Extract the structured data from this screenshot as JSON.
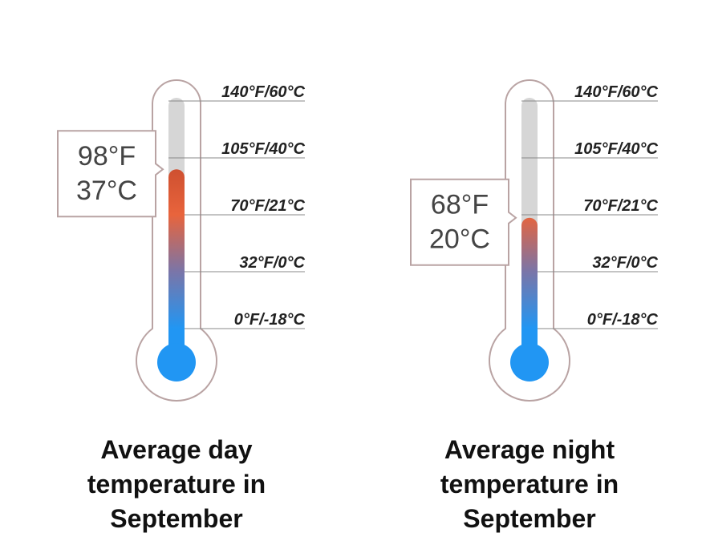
{
  "chart_data": [
    {
      "type": "thermometer",
      "title": "Average day temperature in September",
      "values": [
        98
      ],
      "value_labels": [
        "98°F"
      ],
      "celsius_labels": [
        "37°C"
      ],
      "ylim": [
        0,
        140
      ],
      "yticks": [
        {
          "value": 140,
          "label": "140°F/60°C"
        },
        {
          "value": 105,
          "label": "105°F/40°C"
        },
        {
          "value": 70,
          "label": "70°F/21°C"
        },
        {
          "value": 32,
          "label": "32°F/0°C"
        },
        {
          "value": 0,
          "label": "0°F/-18°C"
        }
      ]
    },
    {
      "type": "thermometer",
      "title": "Average night temperature in September",
      "values": [
        68
      ],
      "value_labels": [
        "68°F"
      ],
      "celsius_labels": [
        "20°C"
      ],
      "ylim": [
        0,
        140
      ],
      "yticks": [
        {
          "value": 140,
          "label": "140°F/60°C"
        },
        {
          "value": 105,
          "label": "105°F/40°C"
        },
        {
          "value": 70,
          "label": "70°F/21°C"
        },
        {
          "value": 32,
          "label": "32°F/0°C"
        },
        {
          "value": 0,
          "label": "0°F/-18°C"
        }
      ]
    }
  ]
}
